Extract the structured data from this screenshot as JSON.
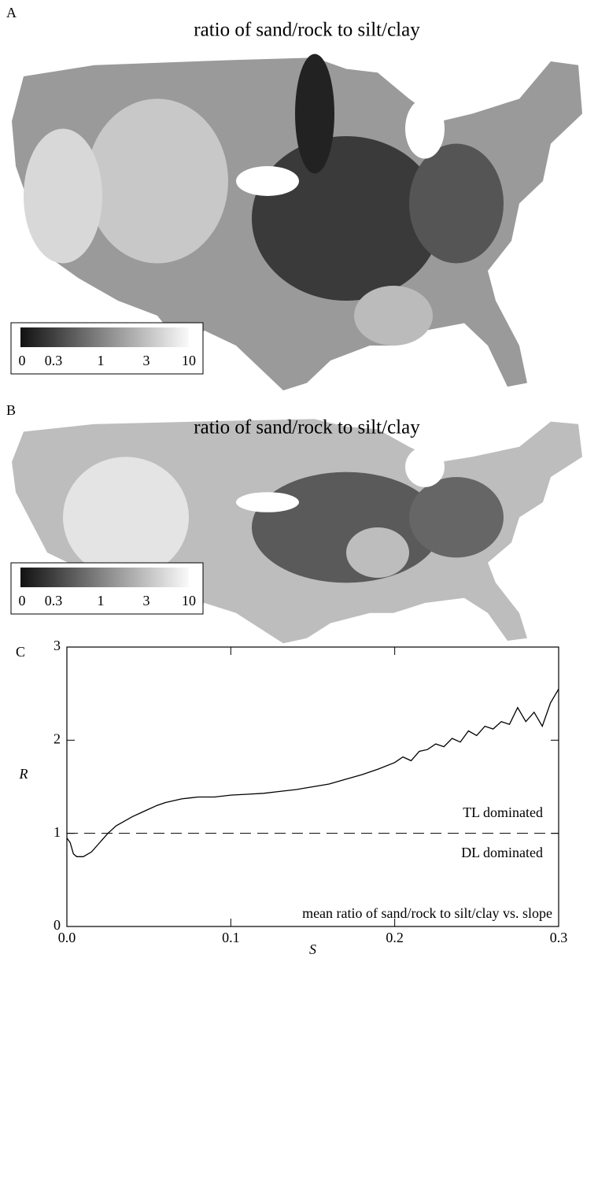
{
  "chart_data": [
    {
      "type": "map",
      "panel": "A",
      "title": "ratio of sand/rock to silt/clay",
      "colorbar_labels": [
        "0",
        "0.3",
        "1",
        "3",
        "10"
      ]
    },
    {
      "type": "map",
      "panel": "B",
      "title": "ratio of sand/rock to silt/clay",
      "colorbar_labels": [
        "0",
        "0.3",
        "1",
        "3",
        "10"
      ]
    },
    {
      "type": "line",
      "panel": "C",
      "xlabel": "S",
      "ylabel": "R",
      "x": [
        0,
        0.002,
        0.004,
        0.006,
        0.01,
        0.015,
        0.02,
        0.025,
        0.03,
        0.035,
        0.04,
        0.045,
        0.05,
        0.055,
        0.06,
        0.065,
        0.07,
        0.075,
        0.08,
        0.09,
        0.1,
        0.11,
        0.12,
        0.13,
        0.14,
        0.15,
        0.16,
        0.17,
        0.18,
        0.19,
        0.2,
        0.205,
        0.21,
        0.215,
        0.22,
        0.225,
        0.23,
        0.235,
        0.24,
        0.245,
        0.25,
        0.255,
        0.26,
        0.265,
        0.27,
        0.275,
        0.28,
        0.285,
        0.29,
        0.295,
        0.3
      ],
      "values": [
        0.95,
        0.9,
        0.78,
        0.75,
        0.75,
        0.8,
        0.9,
        1.0,
        1.08,
        1.13,
        1.18,
        1.22,
        1.26,
        1.3,
        1.33,
        1.35,
        1.37,
        1.38,
        1.39,
        1.39,
        1.41,
        1.42,
        1.43,
        1.45,
        1.47,
        1.5,
        1.53,
        1.58,
        1.63,
        1.69,
        1.76,
        1.82,
        1.78,
        1.88,
        1.9,
        1.96,
        1.93,
        2.02,
        1.98,
        2.1,
        2.05,
        2.15,
        2.12,
        2.2,
        2.17,
        2.35,
        2.2,
        2.3,
        2.15,
        2.4,
        2.55
      ],
      "color": "#000000",
      "xlim": [
        0,
        0.3
      ],
      "ylim": [
        0,
        3
      ],
      "xticks": [
        {
          "value": 0,
          "label": "0.0"
        },
        0.1,
        0.2,
        0.3
      ],
      "yticks": [
        0,
        1,
        2,
        3
      ],
      "hline": 1,
      "annotations": [
        "TL dominated",
        "DL dominated",
        "mean ratio of sand/rock to silt/clay vs. slope"
      ]
    }
  ]
}
